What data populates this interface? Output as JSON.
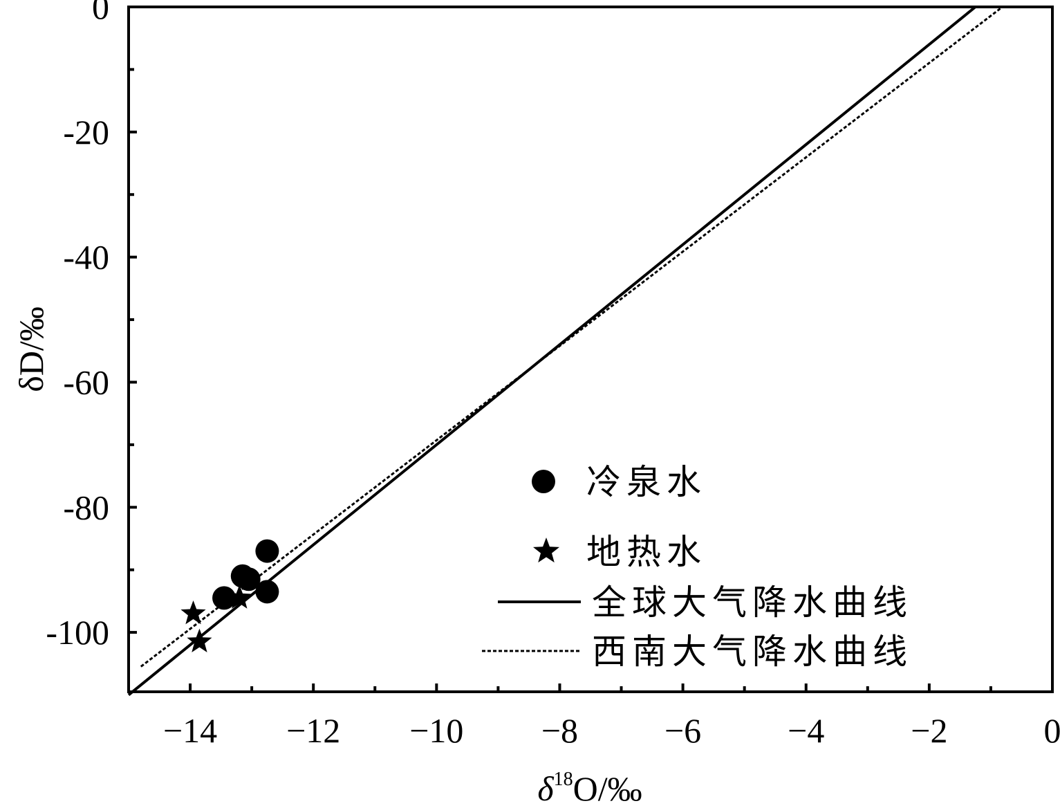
{
  "chart_data": {
    "type": "scatter",
    "xlabel": "δ18O/‰",
    "xlabel_delta": "δ",
    "xlabel_sup": "18",
    "xlabel_rest": "O/‰",
    "ylabel": "δD/‰",
    "xlim": [
      -15,
      0
    ],
    "ylim": [
      -109.5,
      0
    ],
    "x_ticks": [
      -14,
      -12,
      -10,
      -8,
      -6,
      -4,
      -2,
      0
    ],
    "x_tick_labels": [
      "−14",
      "−12",
      "−10",
      "−8",
      "−6",
      "−4",
      "−2",
      "0"
    ],
    "y_ticks": [
      0,
      -20,
      -40,
      -60,
      -80,
      -100
    ],
    "y_tick_labels": [
      "0",
      "-20",
      "-40",
      "-60",
      "-80",
      "-100"
    ],
    "grid": false,
    "legend_position": "bottom-right",
    "series": [
      {
        "name": "冷泉水",
        "kind": "points",
        "marker": "circle",
        "points": [
          {
            "x": -12.75,
            "y": -87.0
          },
          {
            "x": -13.15,
            "y": -91.0
          },
          {
            "x": -13.05,
            "y": -91.5
          },
          {
            "x": -12.75,
            "y": -93.5
          },
          {
            "x": -13.45,
            "y": -94.5
          }
        ]
      },
      {
        "name": "地热水",
        "kind": "points",
        "marker": "star",
        "points": [
          {
            "x": -13.2,
            "y": -94.5
          },
          {
            "x": -13.95,
            "y": -97.0
          },
          {
            "x": -13.85,
            "y": -101.5
          }
        ]
      },
      {
        "name": "全球大气降水曲线",
        "kind": "line",
        "style": "solid",
        "slope": 8,
        "intercept": 10,
        "x_range": [
          -15,
          -1.25
        ]
      },
      {
        "name": "西南大气降水曲线",
        "kind": "line",
        "style": "dashed",
        "slope": 7.54,
        "intercept": 6.12,
        "x_range": [
          -14.8,
          -0.81
        ]
      }
    ]
  }
}
